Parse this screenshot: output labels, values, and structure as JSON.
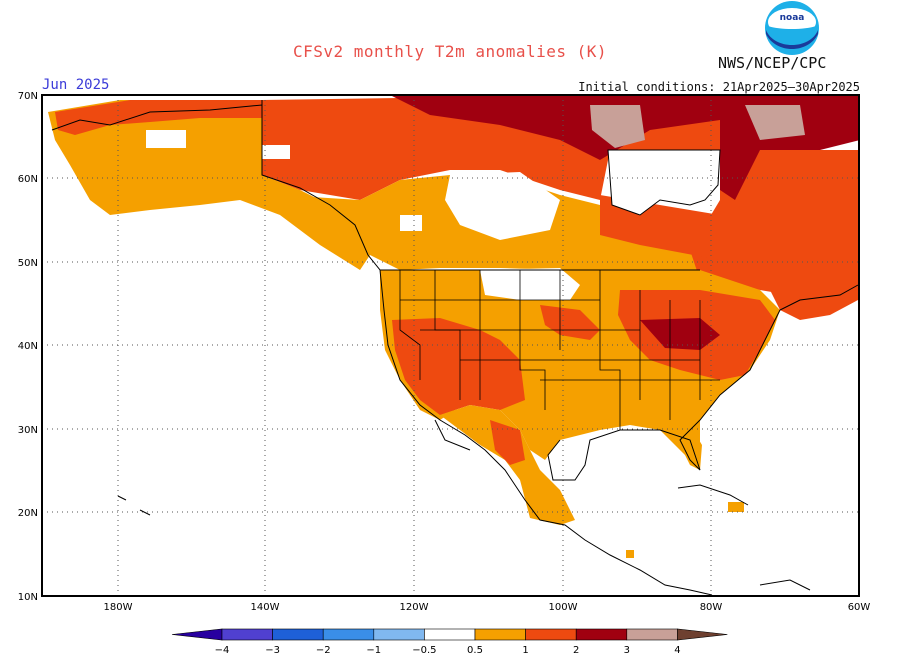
{
  "header": {
    "title": "CFSv2 monthly T2m anomalies (K)",
    "agency": "NWS/NCEP/CPC",
    "valid_month": "Jun 2025",
    "initial_conditions": "Initial conditions: 21Apr2025–30Apr2025",
    "logo_text": "noaa"
  },
  "map": {
    "lat_labels": [
      "70N",
      "60N",
      "50N",
      "40N",
      "30N",
      "20N",
      "10N"
    ],
    "lon_labels": [
      "180W",
      "140W",
      "120W",
      "100W",
      "80W",
      "60W"
    ],
    "lat_range": [
      10,
      70
    ],
    "lon_range": [
      -190,
      -60
    ]
  },
  "legend": {
    "tick_labels": [
      "−4",
      "−3",
      "−2",
      "−1",
      "−0.5",
      "0.5",
      "1",
      "2",
      "3",
      "4"
    ],
    "colors": [
      "#2800a0",
      "#5040d0",
      "#1e60d8",
      "#3a8ee8",
      "#80b8f0",
      "#ffffff",
      "#f5a000",
      "#ee4a10",
      "#a00010",
      "#c8a098",
      "#6e4030"
    ]
  }
}
